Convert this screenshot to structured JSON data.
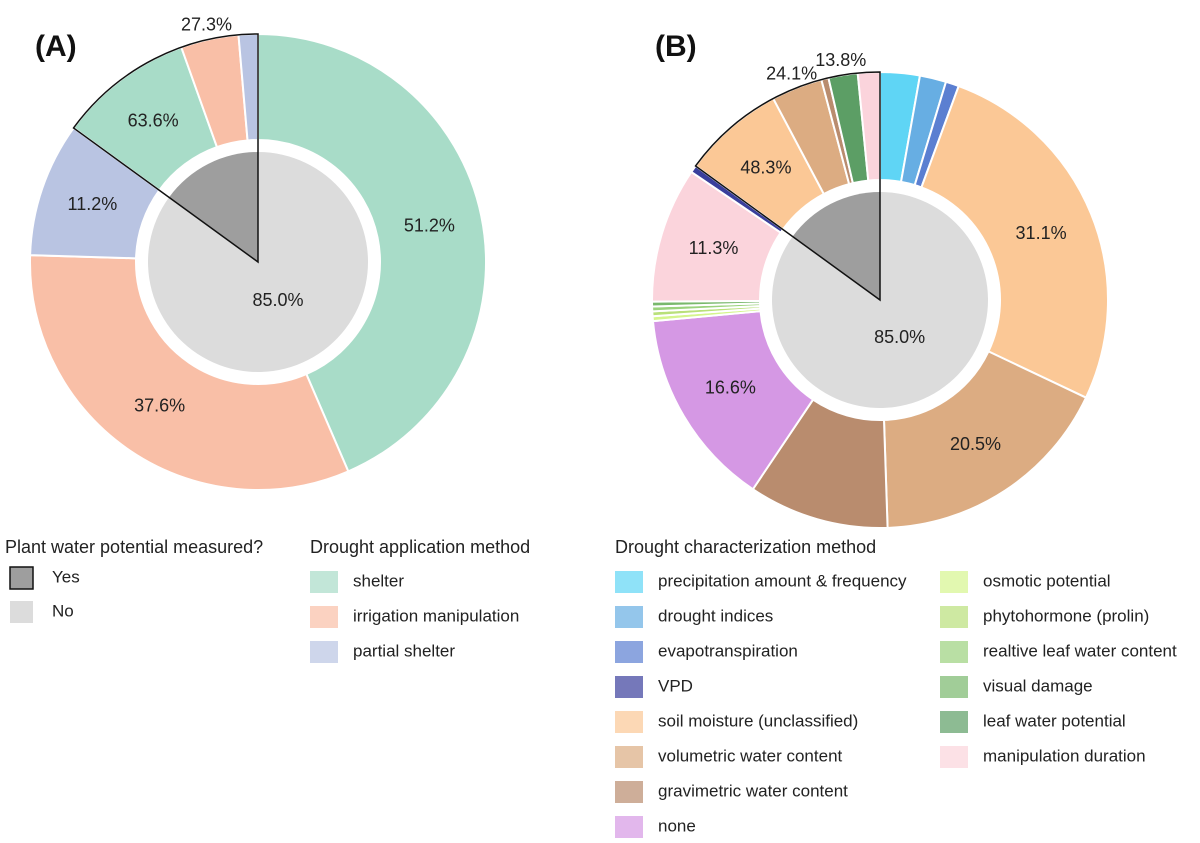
{
  "chart_data": [
    {
      "type": "nested-donut",
      "title": "(A)",
      "legend_title": "Drought application method",
      "categories": [
        "shelter",
        "irrigation manipulation",
        "partial shelter"
      ],
      "colors": [
        "#a8dcc8",
        "#f9bfa7",
        "#b9c4e2"
      ],
      "inner": {
        "title": "Plant water potential measured?",
        "categories": [
          "Yes",
          "No"
        ],
        "colors": [
          "#9e9e9e",
          "#dcdcdc"
        ],
        "values": [
          15,
          85
        ],
        "value_labels": [
          null,
          "85.0%"
        ]
      },
      "rings": [
        {
          "segments": [
            {
              "category": "shelter",
              "value": 63.6,
              "label": "63.6%"
            },
            {
              "category": "irrigation manipulation",
              "value": 27.3,
              "label": "27.3%"
            },
            {
              "category": "partial shelter",
              "value": 9.1
            }
          ]
        },
        {
          "segments": [
            {
              "category": "shelter",
              "value": 51.2,
              "label": "51.2%"
            },
            {
              "category": "irrigation manipulation",
              "value": 37.6,
              "label": "37.6%"
            },
            {
              "category": "partial shelter",
              "value": 11.2,
              "label": "11.2%"
            }
          ]
        }
      ]
    },
    {
      "type": "nested-donut",
      "title": "(B)",
      "legend_title": "Drought characterization method",
      "categories": [
        "precipitation amount & frequency",
        "drought indices",
        "evapotranspiration",
        "VPD",
        "soil moisture (unclassified)",
        "volumetric water content",
        "gravimetric water content",
        "none",
        "osmotic potential",
        "phytohormone (prolin)",
        "realtive leaf water content",
        "visual damage",
        "leaf water potential",
        "manipulation duration"
      ],
      "colors": [
        "#5fd5f5",
        "#67aee3",
        "#5b7fd1",
        "#3a3f9c",
        "#fbc896",
        "#dcac82",
        "#b98c6e",
        "#d598e4",
        "#d5f58e",
        "#b9e07a",
        "#9bd27d",
        "#79b86c",
        "#5c9e65",
        "#fbd4dc"
      ],
      "inner": {
        "colors": [
          "#9e9e9e",
          "#dcdcdc"
        ],
        "values": [
          15,
          85
        ],
        "value_labels": [
          null,
          "85.0%"
        ]
      },
      "rings": [
        {
          "segments": [
            {
              "category": "soil moisture (unclassified)",
              "value": 48.3,
              "label": "48.3%"
            },
            {
              "category": "volumetric water content",
              "value": 24.1,
              "label": "24.1%"
            },
            {
              "category": "gravimetric water content",
              "value": 3.4
            },
            {
              "category": "leaf water potential",
              "value": 13.8,
              "label": "13.8%"
            },
            {
              "category": "manipulation duration",
              "value": 10.4
            }
          ]
        },
        {
          "segments": [
            {
              "category": "precipitation amount & frequency",
              "value": 3.3
            },
            {
              "category": "drought indices",
              "value": 2.2
            },
            {
              "category": "evapotranspiration",
              "value": 1.1
            },
            {
              "category": "soil moisture (unclassified)",
              "value": 31.1,
              "label": "31.1%"
            },
            {
              "category": "volumetric water content",
              "value": 20.5,
              "label": "20.5%"
            },
            {
              "category": "gravimetric water content",
              "value": 11.7
            },
            {
              "category": "none",
              "value": 16.6,
              "label": "16.6%"
            },
            {
              "category": "osmotic potential",
              "value": 0.4
            },
            {
              "category": "phytohormone (prolin)",
              "value": 0.4
            },
            {
              "category": "realtive leaf water content",
              "value": 0.4
            },
            {
              "category": "visual damage",
              "value": 0.4
            },
            {
              "category": "manipulation duration",
              "value": 11.3,
              "label": "11.3%"
            },
            {
              "category": "VPD",
              "value": 0.6
            }
          ]
        }
      ]
    }
  ]
}
